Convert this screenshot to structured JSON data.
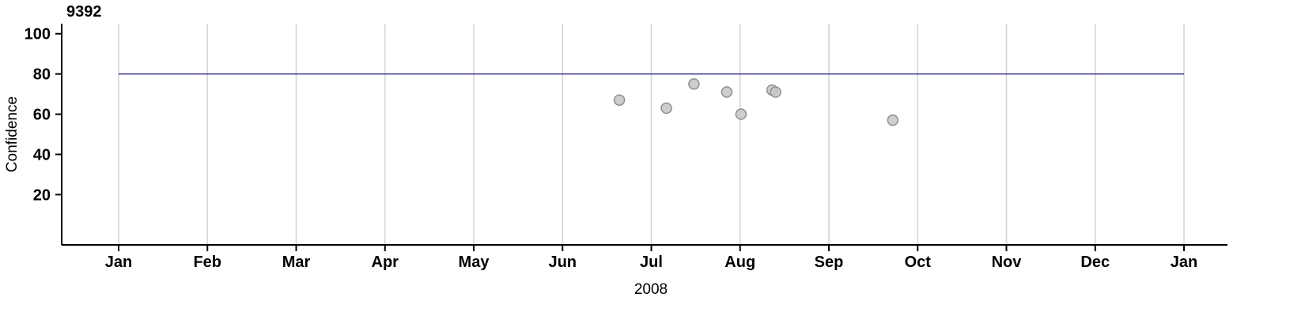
{
  "chart_data": {
    "type": "scatter",
    "title": "9392",
    "xlabel": "2008",
    "ylabel": "Confidence",
    "x_tick_labels": [
      "Jan",
      "Feb",
      "Mar",
      "Apr",
      "May",
      "Jun",
      "Jul",
      "Aug",
      "Sep",
      "Oct",
      "Nov",
      "Dec",
      "Jan"
    ],
    "y_ticks": [
      20,
      40,
      60,
      80,
      100
    ],
    "ylim": [
      -5,
      105
    ],
    "x_range_months": [
      0,
      12
    ],
    "grid": "vertical-only",
    "legend": "none",
    "threshold_line": {
      "value": 80,
      "color": "#34348c"
    },
    "points": [
      {
        "month": 5.64,
        "confidence": 67
      },
      {
        "month": 6.17,
        "confidence": 63
      },
      {
        "month": 6.48,
        "confidence": 75
      },
      {
        "month": 6.85,
        "confidence": 71
      },
      {
        "month": 7.01,
        "confidence": 60
      },
      {
        "month": 7.36,
        "confidence": 72
      },
      {
        "month": 7.4,
        "confidence": 71
      },
      {
        "month": 8.72,
        "confidence": 57
      }
    ],
    "point_style": {
      "fill": "#c6c6c6",
      "stroke": "#8f8f8f",
      "opacity": 0.85
    },
    "colors": {
      "grid": "#d6d6d6",
      "axis": "#000000",
      "background": "#ffffff"
    }
  }
}
